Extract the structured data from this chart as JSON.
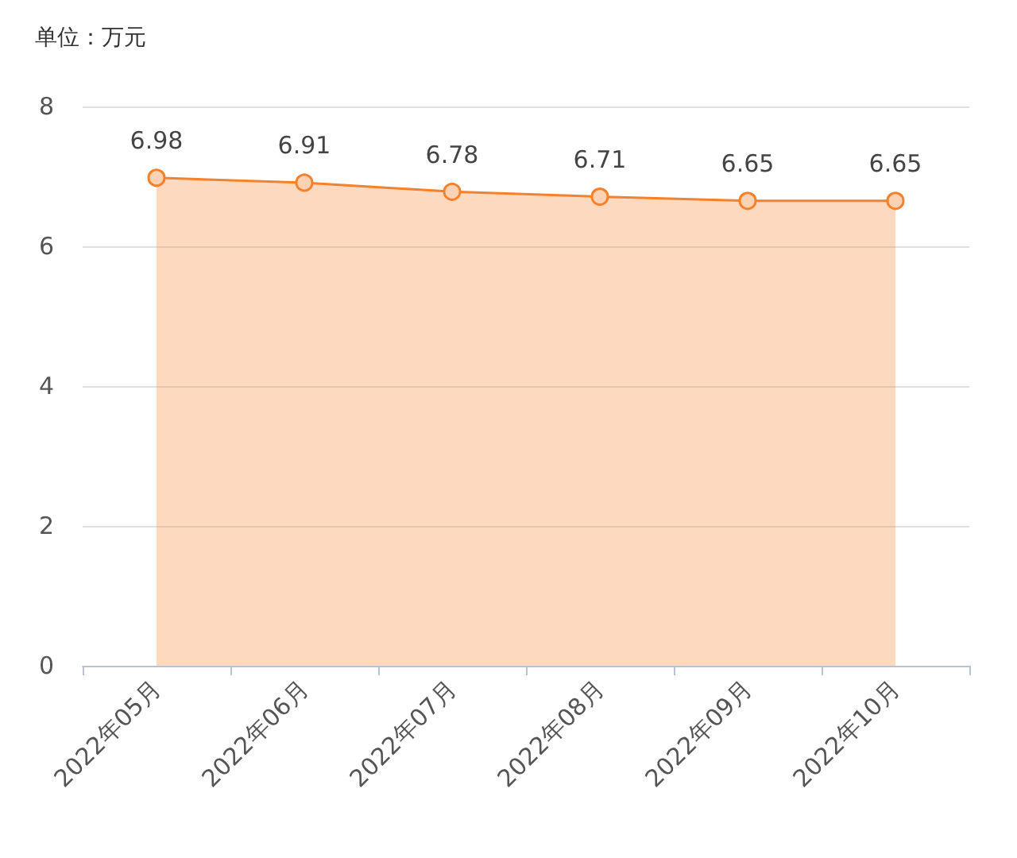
{
  "chart_data": {
    "type": "area",
    "ylabel": "单位：万元",
    "categories": [
      "2022年05月",
      "2022年06月",
      "2022年07月",
      "2022年08月",
      "2022年09月",
      "2022年10月"
    ],
    "series": [
      {
        "color": "#f5812a",
        "values": [
          6.98,
          6.91,
          6.78,
          6.71,
          6.65,
          6.65
        ]
      }
    ],
    "ylim": [
      0,
      8
    ],
    "yticks": [
      0,
      2,
      4,
      6,
      8
    ],
    "grid": "y",
    "marker": "circle",
    "line_style": "solid",
    "data_labels": true
  }
}
